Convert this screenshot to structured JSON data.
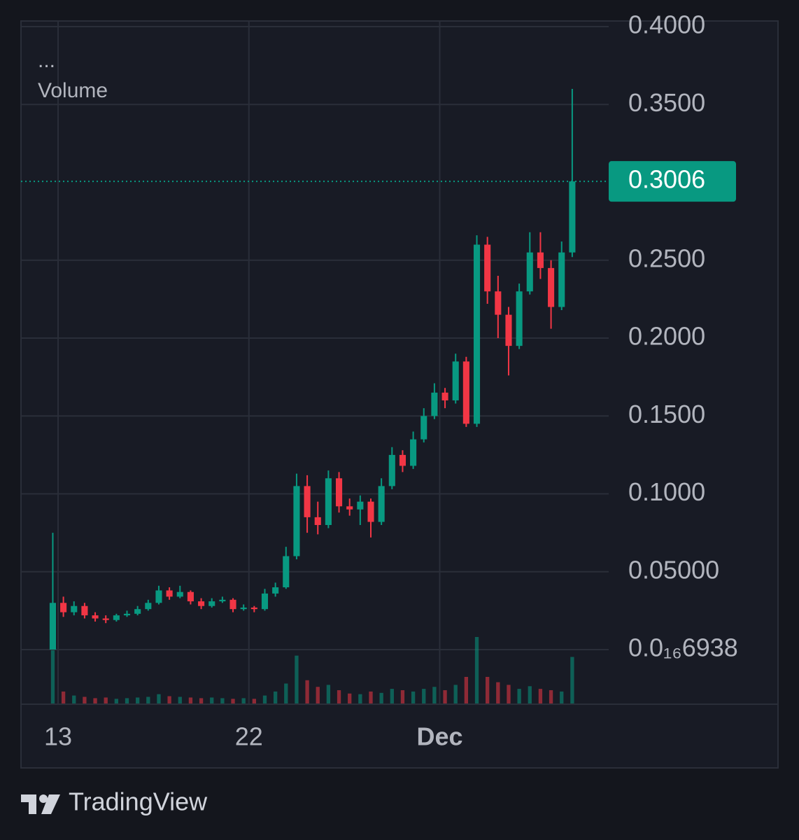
{
  "chart_data": {
    "type": "candlestick",
    "legend_dots": "...",
    "volume_label": "Volume",
    "brand": "TradingView",
    "up_color": "#089981",
    "down_color": "#f23645",
    "grid": true,
    "x": [
      12.75,
      13.25,
      13.75,
      14.25,
      14.75,
      15.25,
      15.75,
      16.25,
      16.75,
      17.25,
      17.75,
      18.25,
      18.75,
      19.25,
      19.75,
      20.25,
      20.75,
      21.25,
      21.75,
      22.25,
      22.75,
      23.25,
      23.75,
      24.25,
      24.75,
      25.25,
      25.75,
      26.25,
      26.75,
      27.25,
      27.75,
      28.25,
      28.75,
      29.25,
      29.75,
      30.25,
      30.75,
      31.25,
      31.75,
      32.25,
      32.75,
      33.25,
      33.75,
      34.25,
      34.75,
      35.25,
      35.75,
      36.25,
      36.75,
      37.25
    ],
    "open": [
      0.0,
      0.03,
      0.024,
      0.028,
      0.022,
      0.02,
      0.019,
      0.022,
      0.023,
      0.026,
      0.03,
      0.038,
      0.034,
      0.037,
      0.031,
      0.028,
      0.031,
      0.032,
      0.026,
      0.027,
      0.026,
      0.036,
      0.04,
      0.06,
      0.105,
      0.085,
      0.08,
      0.11,
      0.092,
      0.09,
      0.095,
      0.082,
      0.105,
      0.125,
      0.118,
      0.135,
      0.15,
      0.165,
      0.16,
      0.185,
      0.145,
      0.26,
      0.23,
      0.215,
      0.195,
      0.23,
      0.255,
      0.245,
      0.22,
      0.255
    ],
    "high": [
      0.075,
      0.034,
      0.031,
      0.03,
      0.024,
      0.022,
      0.023,
      0.025,
      0.028,
      0.032,
      0.041,
      0.04,
      0.041,
      0.038,
      0.033,
      0.033,
      0.034,
      0.033,
      0.029,
      0.028,
      0.039,
      0.043,
      0.066,
      0.113,
      0.112,
      0.095,
      0.115,
      0.114,
      0.097,
      0.099,
      0.097,
      0.11,
      0.13,
      0.128,
      0.14,
      0.155,
      0.171,
      0.168,
      0.19,
      0.188,
      0.266,
      0.265,
      0.24,
      0.22,
      0.235,
      0.268,
      0.268,
      0.25,
      0.262,
      0.36
    ],
    "low": [
      0.0,
      0.021,
      0.022,
      0.02,
      0.018,
      0.017,
      0.018,
      0.021,
      0.022,
      0.025,
      0.029,
      0.032,
      0.033,
      0.029,
      0.026,
      0.027,
      0.03,
      0.024,
      0.025,
      0.024,
      0.025,
      0.034,
      0.039,
      0.058,
      0.075,
      0.074,
      0.078,
      0.088,
      0.086,
      0.08,
      0.072,
      0.08,
      0.103,
      0.114,
      0.116,
      0.133,
      0.148,
      0.155,
      0.158,
      0.143,
      0.143,
      0.222,
      0.2,
      0.176,
      0.193,
      0.228,
      0.238,
      0.206,
      0.218,
      0.252
    ],
    "close": [
      0.03,
      0.024,
      0.028,
      0.022,
      0.02,
      0.019,
      0.022,
      0.023,
      0.026,
      0.03,
      0.038,
      0.034,
      0.037,
      0.031,
      0.028,
      0.031,
      0.032,
      0.026,
      0.027,
      0.026,
      0.036,
      0.04,
      0.06,
      0.105,
      0.085,
      0.08,
      0.11,
      0.092,
      0.09,
      0.095,
      0.082,
      0.105,
      0.125,
      0.118,
      0.135,
      0.15,
      0.165,
      0.16,
      0.185,
      0.145,
      0.26,
      0.23,
      0.215,
      0.195,
      0.23,
      0.255,
      0.245,
      0.22,
      0.255,
      0.3006
    ],
    "volume": [
      80,
      18,
      12,
      10,
      8,
      9,
      7,
      8,
      9,
      10,
      14,
      11,
      10,
      9,
      8,
      9,
      8,
      7,
      8,
      7,
      12,
      18,
      30,
      72,
      35,
      25,
      28,
      20,
      15,
      14,
      18,
      16,
      22,
      20,
      18,
      22,
      25,
      20,
      28,
      40,
      100,
      40,
      32,
      28,
      22,
      26,
      22,
      20,
      18,
      70
    ],
    "xlim": [
      11.25,
      38.97
    ],
    "xticks": [
      {
        "value": 13,
        "label": "13"
      },
      {
        "value": 22,
        "label": "22"
      },
      {
        "value": 31,
        "label": "Dec"
      }
    ],
    "ylim": [
      -0.0346,
      0.4036
    ],
    "yticks": [
      {
        "value": 6.938e-17,
        "label": "0.0₁₆6938"
      },
      {
        "value": 0.05,
        "label": "0.05000"
      },
      {
        "value": 0.1,
        "label": "0.1000"
      },
      {
        "value": 0.15,
        "label": "0.1500"
      },
      {
        "value": 0.2,
        "label": "0.2000"
      },
      {
        "value": 0.25,
        "label": "0.2500"
      },
      {
        "value": 0.35,
        "label": "0.3500"
      },
      {
        "value": 0.4,
        "label": "0.4000"
      }
    ]
  }
}
